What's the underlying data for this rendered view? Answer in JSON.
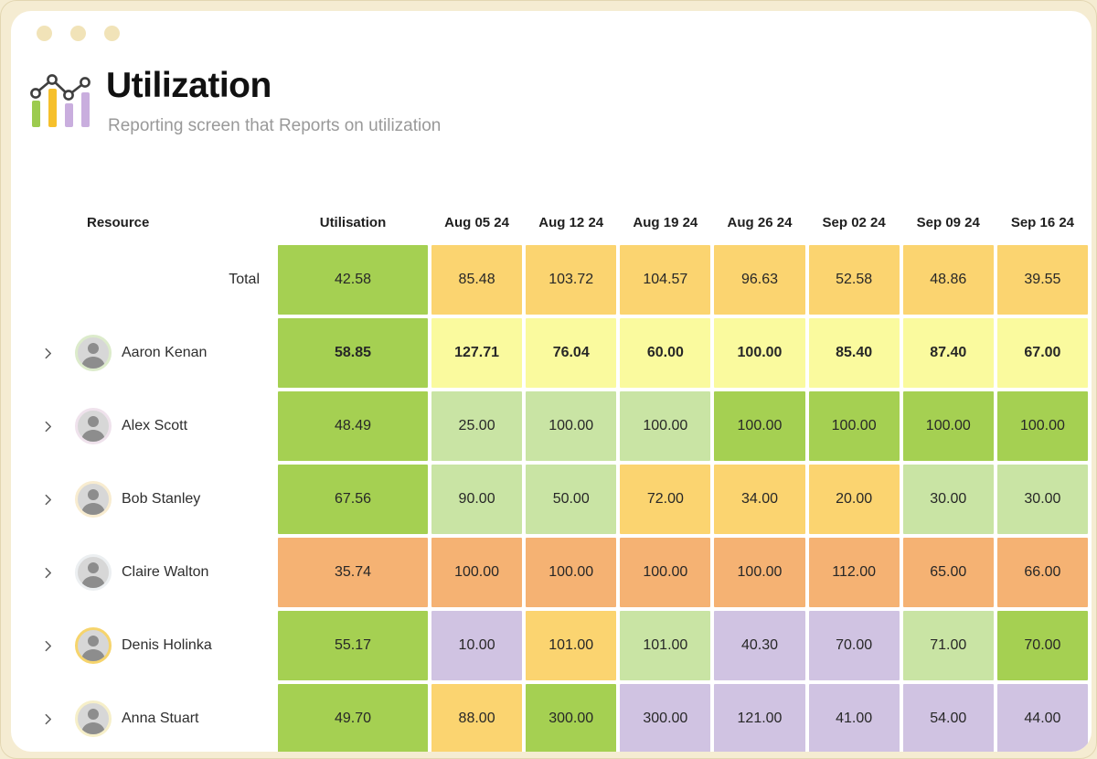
{
  "window": {
    "controls": [
      "dot",
      "dot",
      "dot"
    ]
  },
  "header": {
    "title": "Utilization",
    "subtitle": "Reporting screen that Reports on utilization",
    "icon": "bar-line-chart-icon",
    "icon_colors": {
      "bar1": "#9ccb4f",
      "bar2": "#f6c02c",
      "bar3": "#c9aede",
      "bar4": "#c9aede",
      "line": "#3f3f3f"
    }
  },
  "colors": {
    "green": "#a5d052",
    "lightgreen": "#c9e4a4",
    "yellow": "#fbd470",
    "paleyellow": "#fafa9e",
    "orange": "#f5b273",
    "purple": "#d0c3e2"
  },
  "table": {
    "resource_header": "Resource",
    "columns": [
      "Utilisation",
      "Aug 05 24",
      "Aug 12 24",
      "Aug 19 24",
      "Aug 26 24",
      "Sep 02 24",
      "Sep 09 24",
      "Sep 16 24"
    ],
    "rows": [
      {
        "name": "Total",
        "kind": "total",
        "bold": false,
        "cells": [
          {
            "v": "42.58",
            "c": "green"
          },
          {
            "v": "85.48",
            "c": "yellow"
          },
          {
            "v": "103.72",
            "c": "yellow"
          },
          {
            "v": "104.57",
            "c": "yellow"
          },
          {
            "v": "96.63",
            "c": "yellow"
          },
          {
            "v": "52.58",
            "c": "yellow"
          },
          {
            "v": "48.86",
            "c": "yellow"
          },
          {
            "v": "39.55",
            "c": "yellow"
          }
        ]
      },
      {
        "name": "Aaron Kenan",
        "kind": "person",
        "ring": "#dcebcb",
        "bold": true,
        "cells": [
          {
            "v": "58.85",
            "c": "green"
          },
          {
            "v": "127.71",
            "c": "paleyellow"
          },
          {
            "v": "76.04",
            "c": "paleyellow"
          },
          {
            "v": "60.00",
            "c": "paleyellow"
          },
          {
            "v": "100.00",
            "c": "paleyellow"
          },
          {
            "v": "85.40",
            "c": "paleyellow"
          },
          {
            "v": "87.40",
            "c": "paleyellow"
          },
          {
            "v": "67.00",
            "c": "paleyellow"
          }
        ]
      },
      {
        "name": "Alex Scott",
        "kind": "person",
        "ring": "#efe2ec",
        "bold": false,
        "cells": [
          {
            "v": "48.49",
            "c": "green"
          },
          {
            "v": "25.00",
            "c": "lightgreen"
          },
          {
            "v": "100.00",
            "c": "lightgreen"
          },
          {
            "v": "100.00",
            "c": "lightgreen"
          },
          {
            "v": "100.00",
            "c": "green"
          },
          {
            "v": "100.00",
            "c": "green"
          },
          {
            "v": "100.00",
            "c": "green"
          },
          {
            "v": "100.00",
            "c": "green"
          }
        ]
      },
      {
        "name": "Bob Stanley",
        "kind": "person",
        "ring": "#f8ecd0",
        "bold": false,
        "cells": [
          {
            "v": "67.56",
            "c": "green"
          },
          {
            "v": "90.00",
            "c": "lightgreen"
          },
          {
            "v": "50.00",
            "c": "lightgreen"
          },
          {
            "v": "72.00",
            "c": "yellow"
          },
          {
            "v": "34.00",
            "c": "yellow"
          },
          {
            "v": "20.00",
            "c": "yellow"
          },
          {
            "v": "30.00",
            "c": "lightgreen"
          },
          {
            "v": "30.00",
            "c": "lightgreen"
          }
        ]
      },
      {
        "name": "Claire Walton",
        "kind": "person",
        "ring": "#eceff1",
        "bold": false,
        "cells": [
          {
            "v": "35.74",
            "c": "orange"
          },
          {
            "v": "100.00",
            "c": "orange"
          },
          {
            "v": "100.00",
            "c": "orange"
          },
          {
            "v": "100.00",
            "c": "orange"
          },
          {
            "v": "100.00",
            "c": "orange"
          },
          {
            "v": "112.00",
            "c": "orange"
          },
          {
            "v": "65.00",
            "c": "orange"
          },
          {
            "v": "66.00",
            "c": "orange"
          }
        ]
      },
      {
        "name": "Denis Holinka",
        "kind": "person",
        "ring": "#f6d46c",
        "bold": false,
        "cells": [
          {
            "v": "55.17",
            "c": "green"
          },
          {
            "v": "10.00",
            "c": "purple"
          },
          {
            "v": "101.00",
            "c": "yellow"
          },
          {
            "v": "101.00",
            "c": "lightgreen"
          },
          {
            "v": "40.30",
            "c": "purple"
          },
          {
            "v": "70.00",
            "c": "purple"
          },
          {
            "v": "71.00",
            "c": "lightgreen"
          },
          {
            "v": "70.00",
            "c": "green"
          }
        ]
      },
      {
        "name": "Anna Stuart",
        "kind": "person",
        "ring": "#f6efc9",
        "bold": false,
        "cells": [
          {
            "v": "49.70",
            "c": "green"
          },
          {
            "v": "88.00",
            "c": "yellow"
          },
          {
            "v": "300.00",
            "c": "green"
          },
          {
            "v": "300.00",
            "c": "purple"
          },
          {
            "v": "121.00",
            "c": "purple"
          },
          {
            "v": "41.00",
            "c": "purple"
          },
          {
            "v": "54.00",
            "c": "purple"
          },
          {
            "v": "44.00",
            "c": "purple"
          }
        ]
      }
    ]
  }
}
